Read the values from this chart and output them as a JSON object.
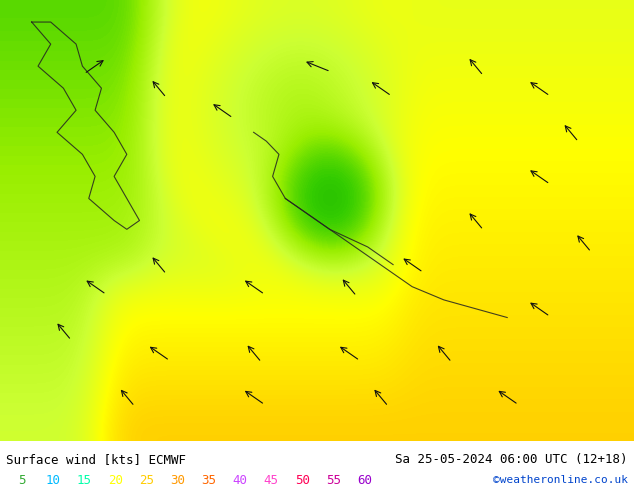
{
  "title_left": "Surface wind [kts] ECMWF",
  "title_right": "Sa 25-05-2024 06:00 UTC (12+18)",
  "credit": "©weatheronline.co.uk",
  "legend_values": [
    5,
    10,
    15,
    20,
    25,
    30,
    35,
    40,
    45,
    50,
    55,
    60
  ],
  "legend_colors": [
    "#00ff00",
    "#32cd32",
    "#7fff00",
    "#adff2f",
    "#ffff00",
    "#ffd700",
    "#ffa500",
    "#ff8c00",
    "#ff4500",
    "#ff1493",
    "#da70d6",
    "#9400d3"
  ],
  "background_color": "#ffffff",
  "map_bg": "#f0f0f0",
  "fig_width": 6.34,
  "fig_height": 4.9,
  "dpi": 100,
  "bottom_bar_height": 0.1,
  "legend_label_colors": [
    "#00e600",
    "#00ccff",
    "#00ff99",
    "#ffff00",
    "#ffcc00",
    "#ff9900",
    "#ff6600",
    "#cc00ff",
    "#ff00cc",
    "#ff0066",
    "#cc0099",
    "#9900cc"
  ]
}
